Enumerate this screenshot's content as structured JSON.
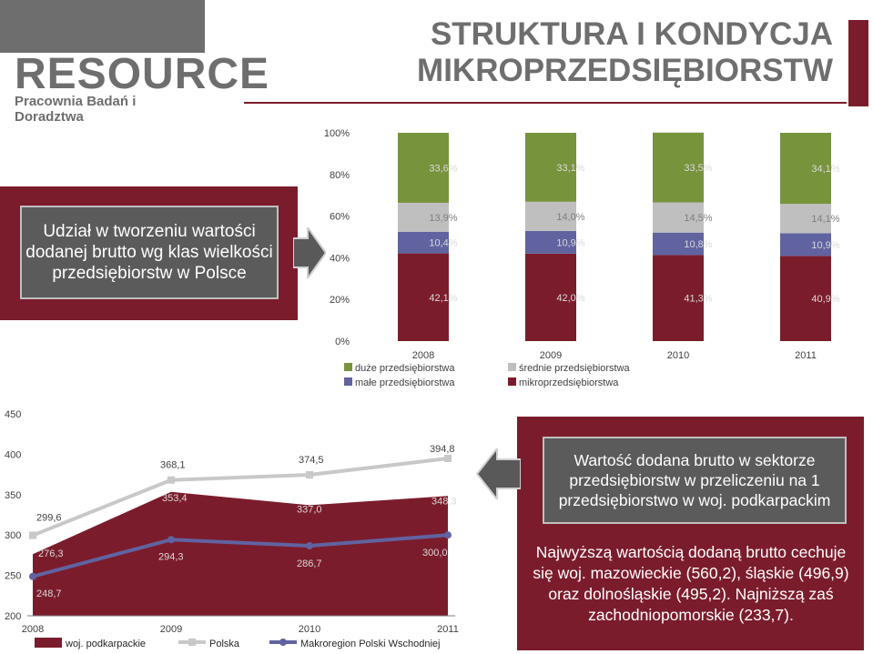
{
  "logo": {
    "text": "RESOURCE",
    "subtitle": "Pracownia Badań i Doradztwa"
  },
  "header": {
    "title": "STRUKTURA I KONDYCJA MIKROPRZEDSIĘBIORSTW"
  },
  "left_panel": {
    "text": "Udział w tworzeniu wartości dodanej brutto wg klas wielkości przedsiębiorstw w Polsce"
  },
  "right_panel": {
    "box_text": "Wartość dodana brutto w sektorze przedsiębiorstw w przeliczeniu na 1 przedsiębiorstwo w woj. podkarpackim",
    "body_text": "Najwyższą wartością dodaną brutto cechuje się woj. mazowieckie (560,2), śląskie (496,9) oraz dolnośląskie (495,2). Najniższą zaś zachodniopomorskie (233,7)."
  },
  "colors": {
    "burgundy": "#7b1c2c",
    "green": "#77933c",
    "light_gray": "#bfbfbf",
    "purple": "#6063a0",
    "dark_gray": "#5b5b5b",
    "accent_arrow": "#595959"
  },
  "chart_data": [
    {
      "type": "bar",
      "stacked": true,
      "percent": true,
      "categories": [
        "2008",
        "2009",
        "2010",
        "2011"
      ],
      "y_ticks": [
        "0%",
        "20%",
        "40%",
        "60%",
        "80%",
        "100%"
      ],
      "ylim": [
        0,
        100
      ],
      "grid": false,
      "legend_position": "bottom",
      "series": [
        {
          "name": "mikroprzedsiębiorstwa",
          "color": "#7b1c2c",
          "values": [
            42.1,
            42.0,
            41.3,
            40.9
          ],
          "labels": [
            "42,1%",
            "42,0%",
            "41,3%",
            "40,9%"
          ]
        },
        {
          "name": "małe przedsiębiorstwa",
          "color": "#6063a0",
          "values": [
            10.4,
            10.9,
            10.8,
            10.9
          ],
          "labels": [
            "10,4%",
            "10,9%",
            "10,8%",
            "10,9%"
          ]
        },
        {
          "name": "średnie przedsiębiorstwa",
          "color": "#bfbfbf",
          "values": [
            13.9,
            14.0,
            14.5,
            14.1
          ],
          "labels": [
            "13,9%",
            "14,0%",
            "14,5%",
            "14,1%"
          ]
        },
        {
          "name": "duże przedsiębiorstwa",
          "color": "#77933c",
          "values": [
            33.6,
            33.1,
            33.5,
            34.1
          ],
          "labels": [
            "33,6%",
            "33,1%",
            "33,5%",
            "34,1%"
          ]
        }
      ],
      "legend": [
        {
          "name": "duże przedsiębiorstwa",
          "color": "#77933c"
        },
        {
          "name": "średnie przedsiębiorstwa",
          "color": "#bfbfbf"
        },
        {
          "name": "małe przedsiębiorstwa",
          "color": "#6063a0"
        },
        {
          "name": "mikroprzedsiębiorstwa",
          "color": "#7b1c2c"
        }
      ]
    },
    {
      "type": "line",
      "categories": [
        "2008",
        "2009",
        "2010",
        "2011"
      ],
      "y_ticks": [
        "200",
        "250",
        "300",
        "350",
        "400",
        "450"
      ],
      "ylim": [
        200,
        450
      ],
      "grid": false,
      "legend_position": "bottom",
      "series": [
        {
          "name": "woj. podkarpackie",
          "style": "area",
          "color": "#7b1c2c",
          "values": [
            276.3,
            353.4,
            337.0,
            348.3
          ],
          "labels": [
            "276,3",
            "353,4",
            "337,0",
            "348,3"
          ]
        },
        {
          "name": "Polska",
          "style": "line",
          "color": "#c8c8c8",
          "values": [
            299.6,
            368.1,
            374.5,
            394.8
          ],
          "labels": [
            "299,6",
            "368,1",
            "374,5",
            "394,8"
          ]
        },
        {
          "name": "Makroregion Polski Wschodniej",
          "style": "line",
          "color": "#6063a0",
          "values": [
            248.7,
            294.3,
            286.7,
            300.0
          ],
          "labels": [
            "248,7",
            "294,3",
            "286,7",
            "300,0"
          ]
        }
      ]
    }
  ]
}
